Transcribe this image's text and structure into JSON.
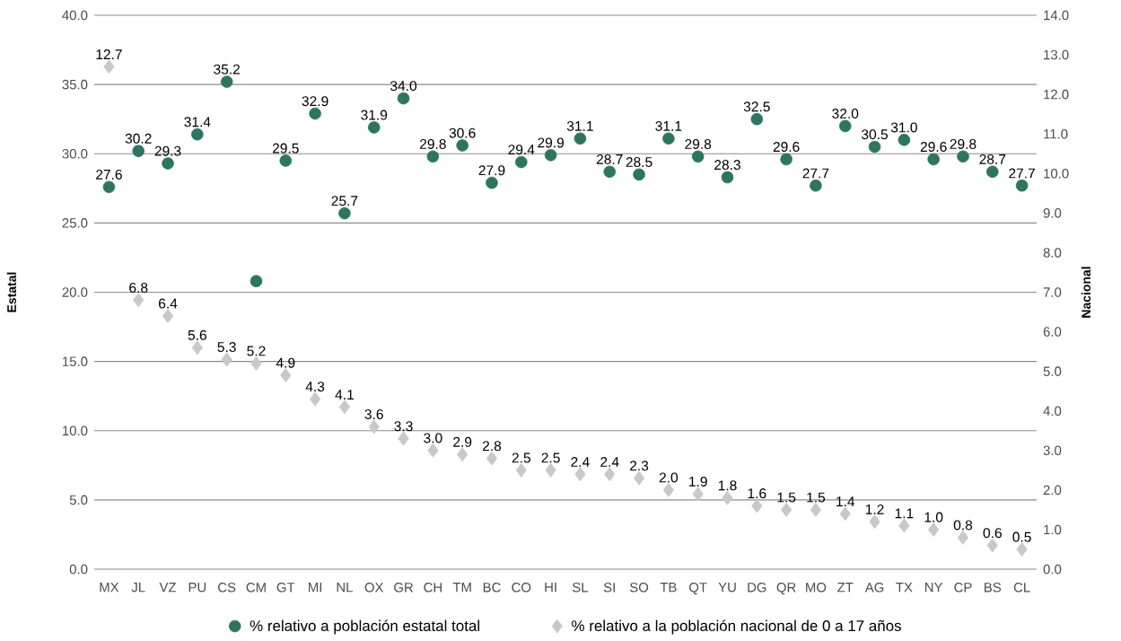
{
  "chart_data": {
    "type": "scatter",
    "ylabel": "Estatal",
    "y2label": "Nacional",
    "categories": [
      "MX",
      "JL",
      "VZ",
      "PU",
      "CS",
      "CM",
      "GT",
      "MI",
      "NL",
      "OX",
      "GR",
      "CH",
      "TM",
      "BC",
      "CO",
      "HI",
      "SL",
      "SI",
      "SO",
      "TB",
      "QT",
      "YU",
      "DG",
      "QR",
      "MO",
      "ZT",
      "AG",
      "TX",
      "NY",
      "CP",
      "BS",
      "CL"
    ],
    "series": [
      {
        "name": "% relativo a población estatal total",
        "color": "#2e7560",
        "marker": "circle",
        "values": [
          27.6,
          30.2,
          29.3,
          31.4,
          35.2,
          20.8,
          29.5,
          32.9,
          25.7,
          31.9,
          34.0,
          29.8,
          30.6,
          27.9,
          29.4,
          29.9,
          31.1,
          28.7,
          28.5,
          31.1,
          29.8,
          28.3,
          32.5,
          29.6,
          27.7,
          32.0,
          30.5,
          31.0,
          29.6,
          29.8,
          28.7,
          27.7
        ],
        "value_labels": [
          "27.6",
          "30.2",
          "29.3",
          "31.4",
          "35.2",
          null,
          "29.5",
          "32.9",
          "25.7",
          "31.9",
          "34.0",
          "29.8",
          "30.6",
          "27.9",
          "29.4",
          "29.9",
          "31.1",
          "28.7",
          "28.5",
          "31.1",
          "29.8",
          "28.3",
          "32.5",
          "29.6",
          "27.7",
          "32.0",
          "30.5",
          "31.0",
          "29.6",
          "29.8",
          "28.7",
          "27.7"
        ]
      },
      {
        "name": "% relativo a la población nacional de 0 a 17 años",
        "color": "#c8c8c8",
        "marker": "diamond",
        "axis": "y2",
        "values": [
          12.7,
          6.8,
          6.4,
          5.6,
          5.3,
          5.2,
          4.9,
          4.3,
          4.1,
          3.6,
          3.3,
          3.0,
          2.9,
          2.8,
          2.5,
          2.5,
          2.4,
          2.4,
          2.3,
          2.0,
          1.9,
          1.8,
          1.6,
          1.5,
          1.5,
          1.4,
          1.2,
          1.1,
          1.0,
          0.8,
          0.6,
          0.5
        ],
        "value_labels": [
          "12.7",
          "6.8",
          "6.4",
          "5.6",
          "5.3",
          "5.2",
          "4.9",
          "4.3",
          "4.1",
          "3.6",
          "3.3",
          "3.0",
          "2.9",
          "2.8",
          "2.5",
          "2.5",
          "2.4",
          "2.4",
          "2.3",
          "2.0",
          "1.9",
          "1.8",
          "1.6",
          "1.5",
          "1.5",
          "1.4",
          "1.2",
          "1.1",
          "1.0",
          "0.8",
          "0.6",
          "0.5"
        ]
      }
    ],
    "ylim": [
      0,
      40
    ],
    "yticks": [
      {
        "value": 0,
        "label": "0.0"
      },
      {
        "value": 5,
        "label": "5.0"
      },
      {
        "value": 10,
        "label": "10.0"
      },
      {
        "value": 15,
        "label": "15.0"
      },
      {
        "value": 20,
        "label": "20.0"
      },
      {
        "value": 25,
        "label": "25.0"
      },
      {
        "value": 30,
        "label": "30.0"
      },
      {
        "value": 35,
        "label": "35.0"
      },
      {
        "value": 40,
        "label": "40.0"
      }
    ],
    "y2lim": [
      0,
      14
    ],
    "y2ticks": [
      {
        "value": 0,
        "label": "0.0"
      },
      {
        "value": 1,
        "label": "1.0"
      },
      {
        "value": 2,
        "label": "2.0"
      },
      {
        "value": 3,
        "label": "3.0"
      },
      {
        "value": 4,
        "label": "4.0"
      },
      {
        "value": 5,
        "label": "5.0"
      },
      {
        "value": 6,
        "label": "6.0"
      },
      {
        "value": 7,
        "label": "7.0"
      },
      {
        "value": 8,
        "label": "8.0"
      },
      {
        "value": 9,
        "label": "9.0"
      },
      {
        "value": 10,
        "label": "10.0"
      },
      {
        "value": 11,
        "label": "11.0"
      },
      {
        "value": 12,
        "label": "12.0"
      },
      {
        "value": 13,
        "label": "13.0"
      },
      {
        "value": 14,
        "label": "14.0"
      }
    ],
    "grid": "y",
    "legend": "bottom"
  }
}
